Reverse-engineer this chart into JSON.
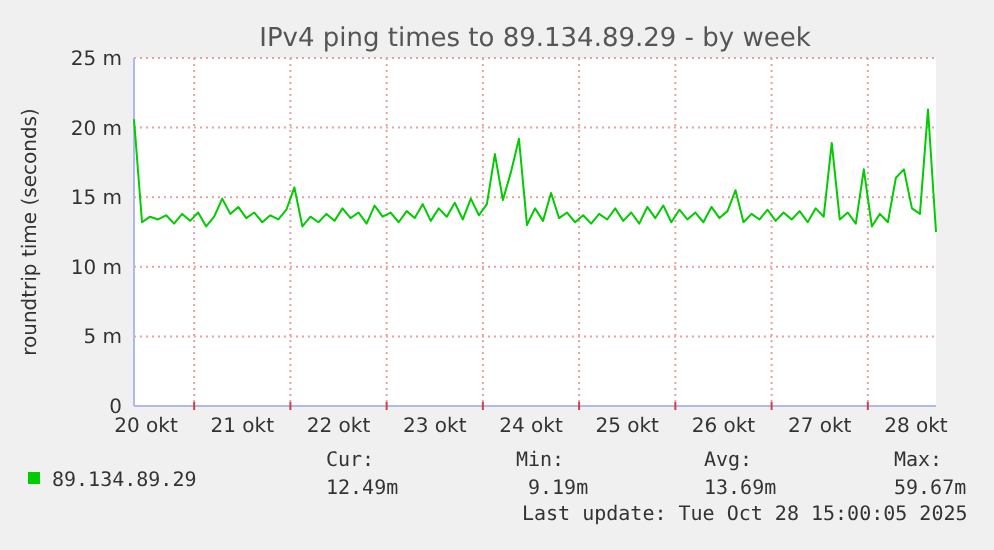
{
  "chart_data": {
    "type": "line",
    "title": "IPv4 ping times to 89.134.89.29 - by week",
    "ylabel": "roundtrip time (seconds)",
    "x": [
      "2025-10-20T09:00",
      "2025-10-20T11:00",
      "2025-10-20T13:00",
      "2025-10-20T15:00",
      "2025-10-20T17:00",
      "2025-10-20T19:00",
      "2025-10-20T21:00",
      "2025-10-20T23:00",
      "2025-10-21T01:00",
      "2025-10-21T03:00",
      "2025-10-21T05:00",
      "2025-10-21T07:00",
      "2025-10-21T09:00",
      "2025-10-21T11:00",
      "2025-10-21T13:00",
      "2025-10-21T15:00",
      "2025-10-21T17:00",
      "2025-10-21T19:00",
      "2025-10-21T21:00",
      "2025-10-21T23:00",
      "2025-10-22T01:00",
      "2025-10-22T03:00",
      "2025-10-22T05:00",
      "2025-10-22T07:00",
      "2025-10-22T09:00",
      "2025-10-22T11:00",
      "2025-10-22T13:00",
      "2025-10-22T15:00",
      "2025-10-22T17:00",
      "2025-10-22T19:00",
      "2025-10-22T21:00",
      "2025-10-22T23:00",
      "2025-10-23T01:00",
      "2025-10-23T03:00",
      "2025-10-23T05:00",
      "2025-10-23T07:00",
      "2025-10-23T09:00",
      "2025-10-23T11:00",
      "2025-10-23T13:00",
      "2025-10-23T15:00",
      "2025-10-23T17:00",
      "2025-10-23T19:00",
      "2025-10-23T21:00",
      "2025-10-23T23:00",
      "2025-10-24T01:00",
      "2025-10-24T03:00",
      "2025-10-24T05:00",
      "2025-10-24T07:00",
      "2025-10-24T09:00",
      "2025-10-24T11:00",
      "2025-10-24T13:00",
      "2025-10-24T15:00",
      "2025-10-24T17:00",
      "2025-10-24T19:00",
      "2025-10-24T21:00",
      "2025-10-24T23:00",
      "2025-10-25T01:00",
      "2025-10-25T03:00",
      "2025-10-25T05:00",
      "2025-10-25T07:00",
      "2025-10-25T09:00",
      "2025-10-25T11:00",
      "2025-10-25T13:00",
      "2025-10-25T15:00",
      "2025-10-25T17:00",
      "2025-10-25T19:00",
      "2025-10-25T21:00",
      "2025-10-25T23:00",
      "2025-10-26T01:00",
      "2025-10-26T03:00",
      "2025-10-26T05:00",
      "2025-10-26T07:00",
      "2025-10-26T09:00",
      "2025-10-26T11:00",
      "2025-10-26T13:00",
      "2025-10-26T15:00",
      "2025-10-26T17:00",
      "2025-10-26T19:00",
      "2025-10-26T21:00",
      "2025-10-26T23:00",
      "2025-10-27T01:00",
      "2025-10-27T03:00",
      "2025-10-27T05:00",
      "2025-10-27T07:00",
      "2025-10-27T09:00",
      "2025-10-27T11:00",
      "2025-10-27T13:00",
      "2025-10-27T15:00",
      "2025-10-27T17:00",
      "2025-10-27T19:00",
      "2025-10-27T21:00",
      "2025-10-27T23:00",
      "2025-10-28T01:00",
      "2025-10-28T03:00",
      "2025-10-28T05:00",
      "2025-10-28T07:00",
      "2025-10-28T09:00",
      "2025-10-28T11:00",
      "2025-10-28T13:00",
      "2025-10-28T15:00",
      "2025-10-28T17:00"
    ],
    "series": [
      {
        "name": "89.134.89.29",
        "color": "#00cc00",
        "values": [
          20.6,
          13.2,
          13.6,
          13.4,
          13.7,
          13.1,
          13.8,
          13.3,
          13.9,
          12.9,
          13.6,
          14.9,
          13.8,
          14.3,
          13.5,
          13.9,
          13.2,
          13.7,
          13.4,
          14.1,
          15.7,
          12.9,
          13.6,
          13.2,
          13.8,
          13.3,
          14.2,
          13.5,
          13.9,
          13.1,
          14.4,
          13.6,
          13.9,
          13.2,
          14.0,
          13.5,
          14.5,
          13.3,
          14.2,
          13.6,
          14.6,
          13.4,
          14.9,
          13.7,
          14.5,
          18.1,
          14.8,
          16.8,
          19.2,
          13.0,
          14.2,
          13.3,
          15.3,
          13.5,
          13.9,
          13.2,
          13.7,
          13.1,
          13.8,
          13.4,
          14.2,
          13.3,
          13.9,
          13.1,
          14.3,
          13.5,
          14.4,
          13.2,
          14.1,
          13.4,
          13.9,
          13.2,
          14.3,
          13.5,
          14.0,
          15.5,
          13.2,
          13.8,
          13.4,
          14.1,
          13.3,
          13.9,
          13.4,
          14.0,
          13.2,
          14.2,
          13.6,
          18.9,
          13.4,
          13.9,
          13.1,
          17.0,
          12.9,
          13.8,
          13.2,
          16.4,
          17.0,
          14.2,
          13.8,
          21.3,
          12.5
        ]
      }
    ],
    "xlim": [
      "2025-10-20T09:00",
      "2025-10-28T17:00"
    ],
    "xticks": [
      {
        "value": "2025-10-20T12:00",
        "label": "20 okt"
      },
      {
        "value": "2025-10-21T12:00",
        "label": "21 okt"
      },
      {
        "value": "2025-10-22T12:00",
        "label": "22 okt"
      },
      {
        "value": "2025-10-23T12:00",
        "label": "23 okt"
      },
      {
        "value": "2025-10-24T12:00",
        "label": "24 okt"
      },
      {
        "value": "2025-10-25T12:00",
        "label": "25 okt"
      },
      {
        "value": "2025-10-26T12:00",
        "label": "26 okt"
      },
      {
        "value": "2025-10-27T12:00",
        "label": "27 okt"
      },
      {
        "value": "2025-10-28T12:00",
        "label": "28 okt"
      },
      {
        "value": "2025-10-21",
        "label": null
      },
      {
        "value": "2025-10-22",
        "label": null
      },
      {
        "value": "2025-10-23",
        "label": null
      },
      {
        "value": "2025-10-24",
        "label": null
      },
      {
        "value": "2025-10-25",
        "label": null
      },
      {
        "value": "2025-10-26",
        "label": null
      },
      {
        "value": "2025-10-27",
        "label": null
      },
      {
        "value": "2025-10-28",
        "label": null
      }
    ],
    "ylim": [
      0,
      25
    ],
    "yticks": [
      {
        "value": 0,
        "label": "0"
      },
      {
        "value": 5,
        "label": "5 m"
      },
      {
        "value": 10,
        "label": "10 m"
      },
      {
        "value": 15,
        "label": "15 m"
      },
      {
        "value": 20,
        "label": "20 m"
      },
      {
        "value": 25,
        "label": "25 m"
      }
    ],
    "grid": true,
    "legend": "bottom",
    "annotations": [
      "Cur:",
      "12.49m",
      "Min:",
      "9.19m",
      "Avg:",
      "13.69m",
      "Max:",
      "59.67m",
      "Last update: Tue Oct 28 15:00:05 2025"
    ]
  }
}
